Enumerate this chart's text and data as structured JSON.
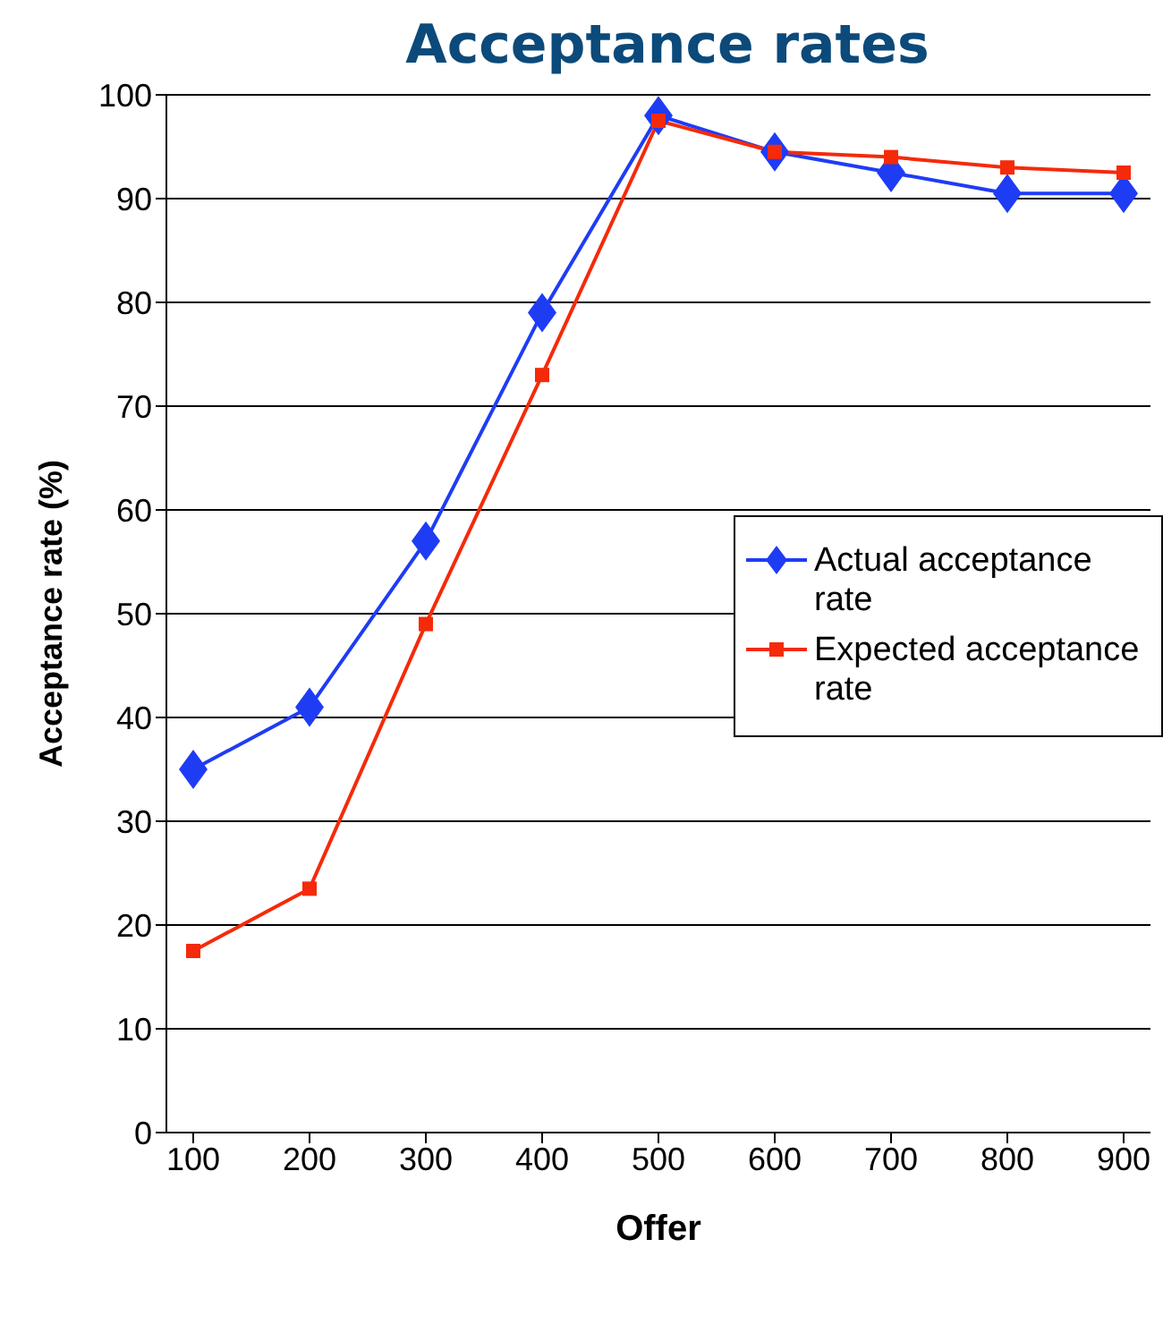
{
  "chart_data": {
    "type": "line",
    "title": "Acceptance rates",
    "xlabel": "Offer",
    "ylabel": "Acceptance rate (%)",
    "categories": [
      "100",
      "200",
      "300",
      "400",
      "500",
      "600",
      "700",
      "800",
      "900"
    ],
    "series": [
      {
        "name": "Actual acceptance rate",
        "color": "#1f3cf5",
        "marker": "diamond",
        "values": [
          35,
          41,
          57,
          79,
          98,
          94.5,
          92.5,
          90.5,
          90.5
        ]
      },
      {
        "name": "Expected acceptance rate",
        "color": "#f52a0a",
        "marker": "square",
        "values": [
          17.5,
          23.5,
          49,
          73,
          97.5,
          94.5,
          94,
          93,
          92.5
        ]
      }
    ],
    "ylim": [
      0,
      100
    ],
    "yticks": [
      0,
      10,
      20,
      30,
      40,
      50,
      60,
      70,
      80,
      90,
      100
    ],
    "grid": "y",
    "legend": "right"
  }
}
